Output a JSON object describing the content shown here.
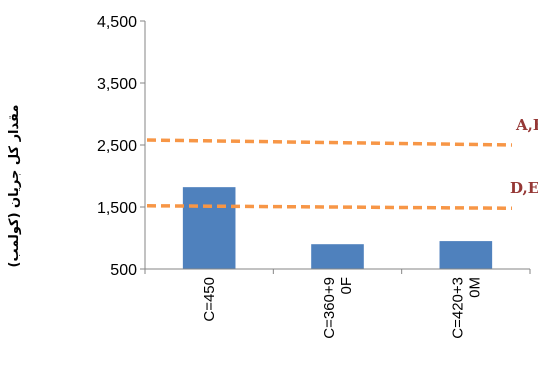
{
  "chart_data": {
    "type": "bar",
    "title": "",
    "xlabel": "",
    "ylabel": "مقدار کل جریان (کولمب)",
    "categories": [
      "C=450",
      "C=360+90F",
      "C=420+30M"
    ],
    "category_lines": [
      [
        "C=450"
      ],
      [
        "C=360+9",
        "0F"
      ],
      [
        "C=420+3",
        "0M"
      ]
    ],
    "values": [
      1820,
      900,
      950
    ],
    "ylim": [
      500,
      4500
    ],
    "yticks": [
      500,
      1500,
      2500,
      3500,
      4500
    ],
    "ytick_labels": [
      "500",
      "1,500",
      "2,500",
      "3,500",
      "4,500"
    ],
    "grid": false,
    "legend": "none",
    "bar_color": "#4f81bd",
    "reference_lines": [
      {
        "label": "شرایط آب و هوایی A,B,C",
        "y_start": 2580,
        "y_end": 2500,
        "color": "#f79646",
        "style": "dashed"
      },
      {
        "label": "شرایط آب و هوایی D,E,F",
        "y_start": 1520,
        "y_end": 1480,
        "color": "#f79646",
        "style": "dashed"
      }
    ]
  }
}
